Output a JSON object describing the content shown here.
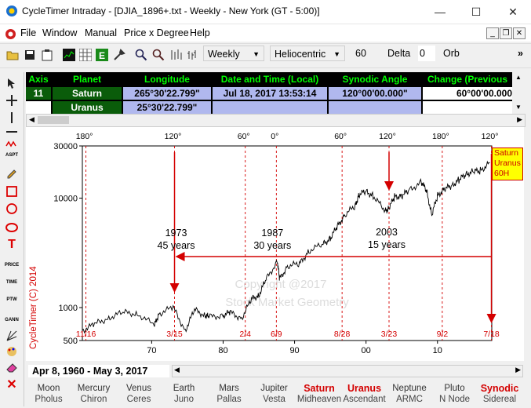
{
  "window": {
    "title": "CycleTimer Intraday - [DJIA_1896+.txt - Weekly - New York (GT - 5:00)]",
    "minimize": "—",
    "maximize": "☐",
    "close": "✕"
  },
  "menu": {
    "items": [
      "File",
      "Window",
      "Manual",
      "Price x Degree",
      "Help"
    ]
  },
  "toolbar": {
    "timeframe": "Weekly",
    "coord": "Heliocentric",
    "value": "60",
    "delta_label": "Delta",
    "delta_value": "0",
    "orb_label": "Orb",
    "more": "»"
  },
  "table": {
    "headers": [
      "Axis",
      "Planet",
      "Longitude",
      "Date and Time (Local)",
      "Synodic Angle",
      "Change (Previous"
    ],
    "rows": [
      {
        "axis": "11",
        "planet": "Saturn",
        "longitude": "265°30'22.799\"",
        "datetime": "Jul 18, 2017   13:53:14",
        "synodic": "120°00'00.000\"",
        "change": "60°00'00.000"
      },
      {
        "axis": "",
        "planet": "Uranus",
        "longitude": "25°30'22.799\"",
        "datetime": "",
        "synodic": "",
        "change": ""
      }
    ]
  },
  "chart_data": {
    "type": "line",
    "y_scale": "log",
    "ylim": [
      500,
      30000
    ],
    "y_ticks": [
      "30000",
      "10000",
      "1000",
      "500"
    ],
    "x_ticks": [
      "70",
      "80",
      "90",
      "00",
      "10"
    ],
    "angle_labels": [
      "180°",
      "120°",
      "60°",
      "0°",
      "60°",
      "120°",
      "180°",
      "120°"
    ],
    "date_labels": [
      "11/16",
      "3/15",
      "2/4",
      "6/9",
      "8/28",
      "3/23",
      "9/2",
      "7/18"
    ],
    "annotations": [
      {
        "line1": "1973",
        "line2": "45 years"
      },
      {
        "line1": "1987",
        "line2": "30 years"
      },
      {
        "line1": "2003",
        "line2": "15 years"
      }
    ],
    "watermark": [
      "Copyright @2017",
      "Stock Market Geometry"
    ],
    "legend": [
      "Saturn",
      "Uranus",
      "60H"
    ],
    "series": [
      {
        "name": "DJIA",
        "x": [
          1960.3,
          1962,
          1964,
          1966,
          1968,
          1970.4,
          1971,
          1973.0,
          1974.7,
          1976,
          1977.5,
          1978,
          1980,
          1981,
          1982.6,
          1984,
          1985,
          1986,
          1987.6,
          1987.9,
          1989,
          1990.7,
          1992,
          1994,
          1995,
          1996,
          1997,
          1998.5,
          1999,
          2000.0,
          2001,
          2002.7,
          2003.2,
          2004,
          2005,
          2006,
          2007.8,
          2008.5,
          2009.2,
          2010,
          2011,
          2012,
          2013,
          2014,
          2015,
          2016,
          2017.3
        ],
        "y": [
          620,
          700,
          810,
          900,
          880,
          690,
          880,
          1000,
          620,
          950,
          850,
          820,
          850,
          900,
          800,
          1200,
          1300,
          1800,
          2650,
          1800,
          2400,
          2500,
          3300,
          3800,
          4300,
          5500,
          7000,
          8500,
          10800,
          11500,
          10500,
          7600,
          8100,
          10300,
          10500,
          11800,
          14000,
          11500,
          7000,
          10500,
          12200,
          13000,
          14700,
          16500,
          17500,
          17800,
          20900
        ]
      }
    ],
    "copyright_label": "CycleTimer (C) 2014",
    "date_range": "Apr 8, 1960  - May 3, 2017"
  },
  "planets": [
    {
      "top": "Moon",
      "bot": "Pholus",
      "hl": false
    },
    {
      "top": "Mercury",
      "bot": "Chiron",
      "hl": false
    },
    {
      "top": "Venus",
      "bot": "Ceres",
      "hl": false
    },
    {
      "top": "Earth",
      "bot": "Juno",
      "hl": false
    },
    {
      "top": "Mars",
      "bot": "Pallas",
      "hl": false
    },
    {
      "top": "Jupiter",
      "bot": "Vesta",
      "hl": false
    },
    {
      "top": "Saturn",
      "bot": "Midheaven",
      "hl": true
    },
    {
      "top": "Uranus",
      "bot": "Ascendant",
      "hl": true
    },
    {
      "top": "Neptune",
      "bot": "ARMC",
      "hl": false
    },
    {
      "top": "Pluto",
      "bot": "N Node",
      "hl": false
    },
    {
      "top": "Synodic",
      "bot": "Sidereal",
      "hl": true
    }
  ],
  "colors": {
    "accent_red": "#d40000",
    "table_green": "#00ff00",
    "table_blue": "#b0b8ee",
    "legend_bg": "#ffff00"
  }
}
